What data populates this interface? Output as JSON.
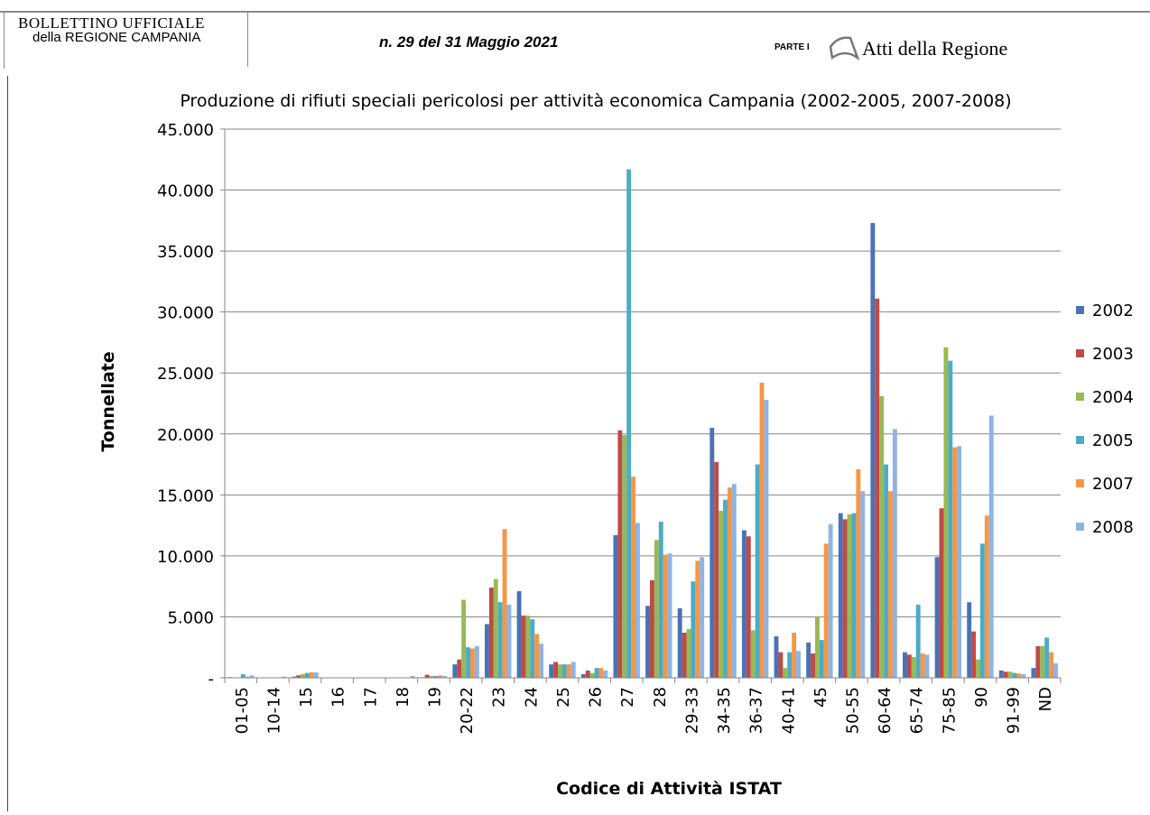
{
  "header": {
    "publication_line1": "BOLLETTINO UFFICIALE",
    "publication_line2": "della REGIONE CAMPANIA",
    "issue": "n. 29 del 31 Maggio 2021",
    "parte_label": "PARTE I",
    "section": "Atti della Regione"
  },
  "chart_data": {
    "type": "bar",
    "title": "Produzione di rifiuti speciali pericolosi per attività economica  Campania (2002-2005, 2007-2008)",
    "xlabel": "Codice di Attività ISTAT",
    "ylabel": "Tonnellate",
    "ylim": [
      0,
      45000
    ],
    "yticks": [
      "-",
      "5.000",
      "10.000",
      "15.000",
      "20.000",
      "25.000",
      "30.000",
      "35.000",
      "40.000",
      "45.000"
    ],
    "grid": true,
    "legend_position": "right",
    "categories": [
      "01-05",
      "10-14",
      "15",
      "16",
      "17",
      "18",
      "19",
      "20-22",
      "23",
      "24",
      "25",
      "26",
      "27",
      "28",
      "29-33",
      "34-35",
      "36-37",
      "40-41",
      "45",
      "50-55",
      "60-64",
      "65-74",
      "75-85",
      "90",
      "91-99",
      "ND"
    ],
    "series": [
      {
        "name": "2002",
        "color": "#4a72b5",
        "values": [
          50,
          0,
          100,
          0,
          0,
          0,
          50,
          1100,
          4400,
          7100,
          1100,
          300,
          11700,
          5900,
          5700,
          20500,
          12100,
          3400,
          2900,
          13500,
          37300,
          2100,
          9900,
          6200,
          600,
          800
        ]
      },
      {
        "name": "2003",
        "color": "#be4b48",
        "values": [
          0,
          0,
          200,
          0,
          0,
          0,
          250,
          1500,
          7400,
          5100,
          1300,
          600,
          20300,
          8000,
          3700,
          17700,
          11600,
          2100,
          2000,
          13000,
          31100,
          1900,
          13900,
          3800,
          500,
          2600
        ]
      },
      {
        "name": "2004",
        "color": "#98b954",
        "values": [
          0,
          0,
          300,
          0,
          0,
          0,
          150,
          6400,
          8100,
          5100,
          1100,
          400,
          19900,
          11300,
          4000,
          13700,
          3900,
          800,
          5000,
          13400,
          23100,
          1700,
          27100,
          1500,
          500,
          2600
        ]
      },
      {
        "name": "2005",
        "color": "#4bacc6",
        "values": [
          300,
          0,
          400,
          0,
          0,
          0,
          150,
          2500,
          6200,
          4800,
          1100,
          800,
          41700,
          12800,
          7900,
          14600,
          17500,
          2100,
          3100,
          13500,
          17500,
          6000,
          26000,
          11000,
          400,
          3300
        ]
      },
      {
        "name": "2007",
        "color": "#f79646",
        "values": [
          100,
          0,
          450,
          0,
          0,
          0,
          200,
          2400,
          12200,
          3600,
          1100,
          800,
          16500,
          10100,
          9600,
          15600,
          24200,
          3700,
          11000,
          17100,
          15300,
          2000,
          18900,
          13300,
          350,
          2100
        ]
      },
      {
        "name": "2008",
        "color": "#8eb4e3",
        "values": [
          200,
          100,
          450,
          0,
          0,
          150,
          150,
          2600,
          6000,
          2800,
          1300,
          600,
          12700,
          10200,
          9900,
          15900,
          22800,
          2200,
          12600,
          15300,
          20400,
          1900,
          19000,
          21500,
          300,
          1200
        ]
      }
    ]
  }
}
